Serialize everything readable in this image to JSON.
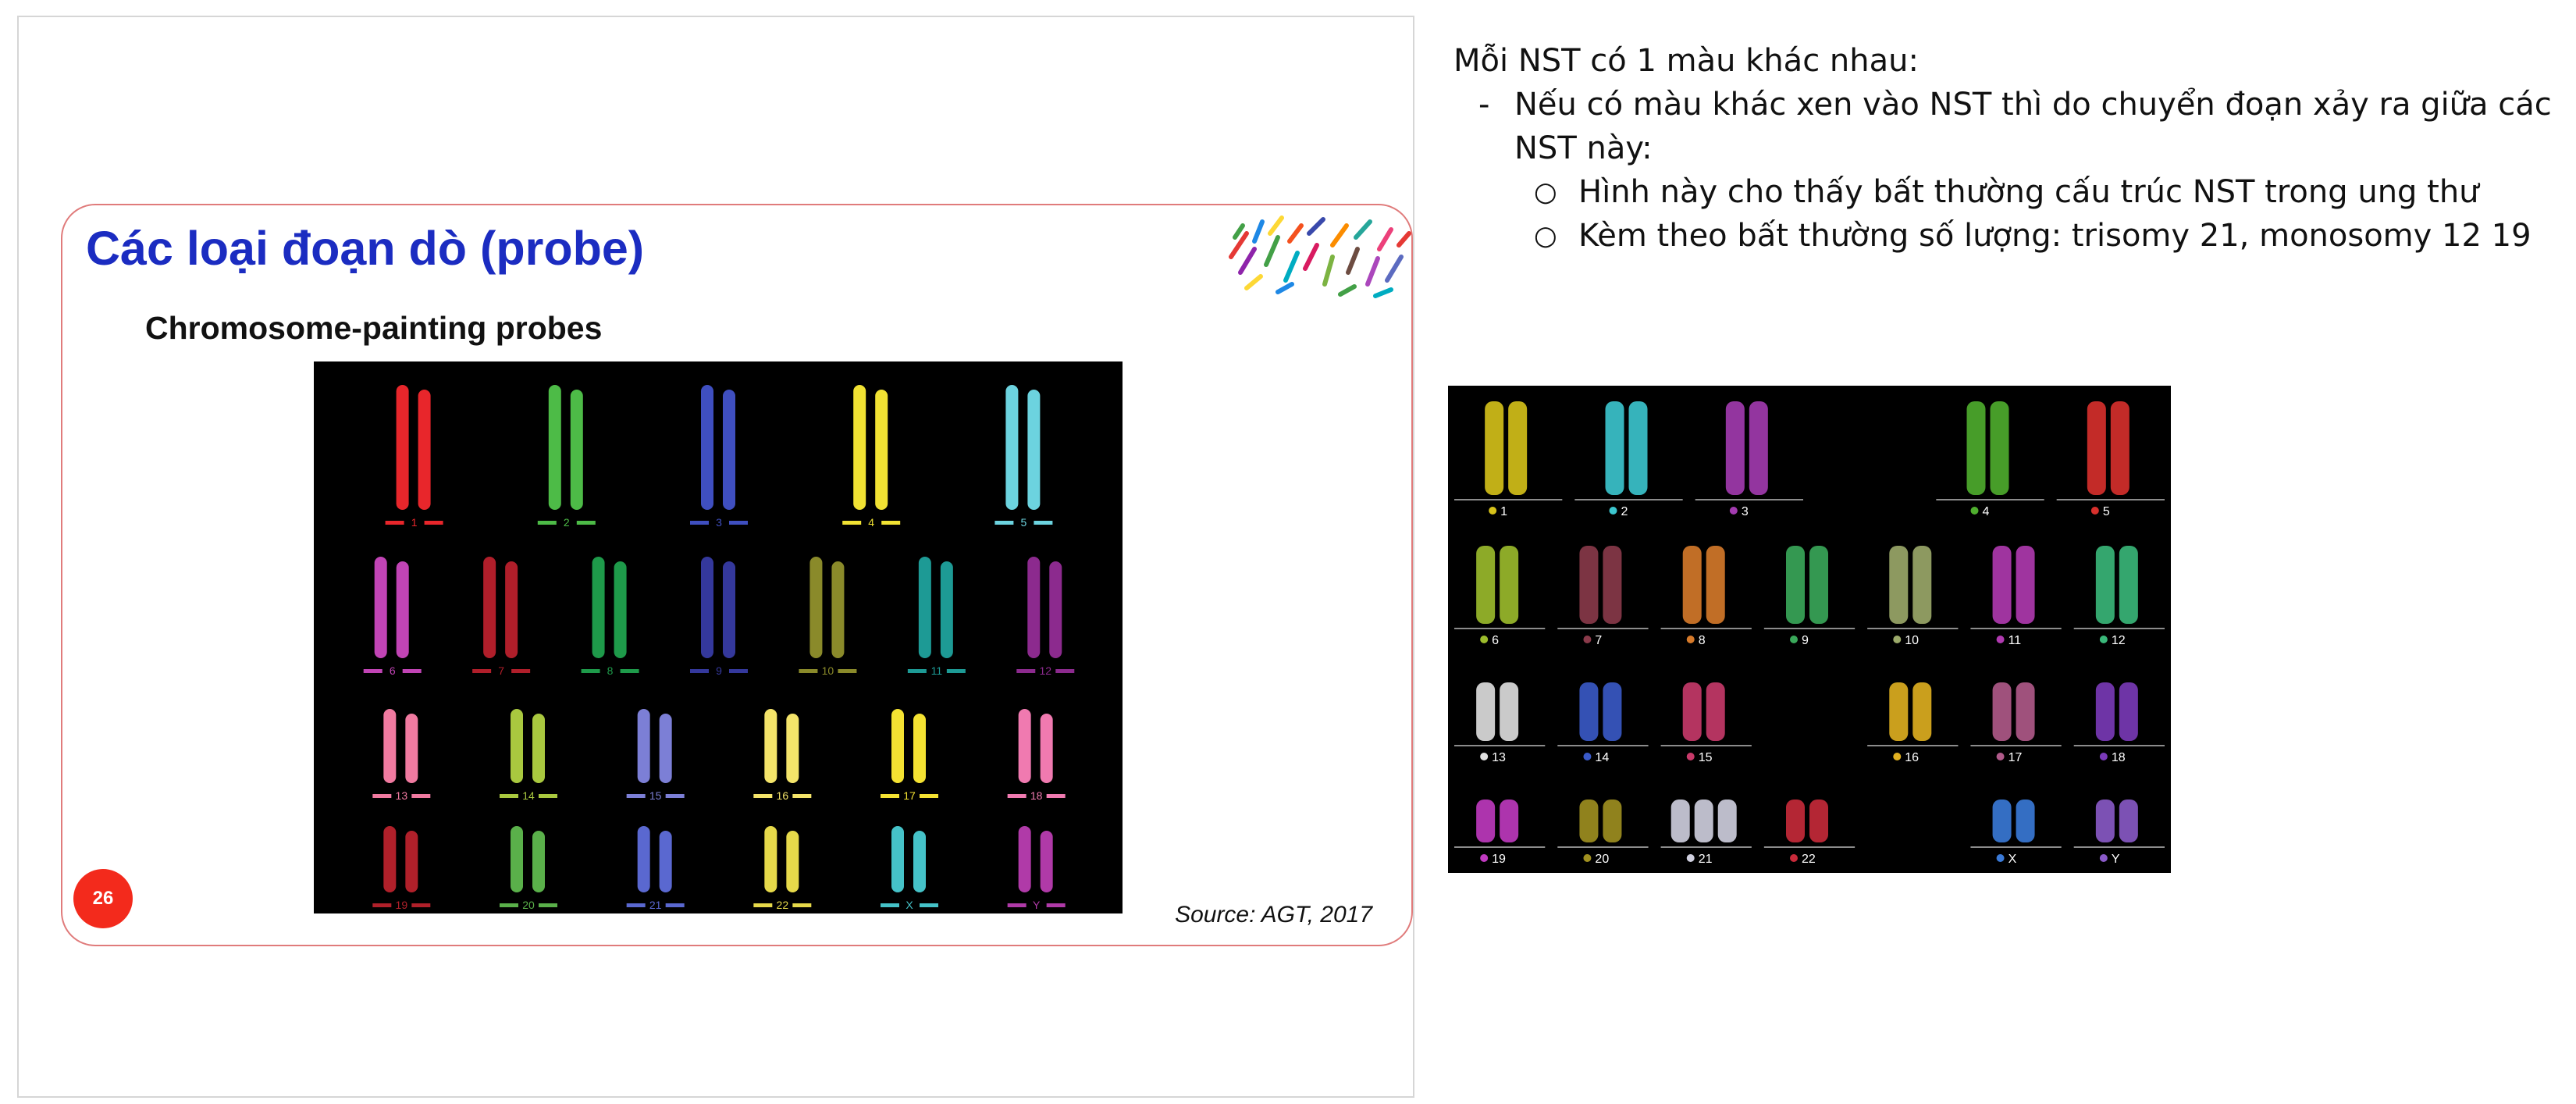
{
  "slide": {
    "title": "Các loại đoạn dò (probe)",
    "subtitle": "Chromosome-painting probes",
    "page_number": "26",
    "source": "Source: AGT, 2017",
    "karyotype_labels": [
      "1",
      "2",
      "3",
      "4",
      "5",
      "6",
      "7",
      "8",
      "9",
      "10",
      "11",
      "12",
      "13",
      "14",
      "15",
      "16",
      "17",
      "18",
      "19",
      "20",
      "21",
      "22",
      "X",
      "Y"
    ]
  },
  "notes": {
    "heading": "Mỗi NST có 1 màu khác nhau:",
    "bullet_char": "-",
    "sub_bullet_char": "○",
    "item": "Nếu có màu khác xen vào NST thì do chuyển đoạn xảy ra giữa các NST này:",
    "subitems": [
      "Hình này cho thấy bất thường cấu trúc NST trong ung thư",
      "Kèm theo bất thường số lượng: trisomy 21, monosomy 12 19"
    ]
  },
  "right_karyotype": {
    "labels": [
      "1",
      "2",
      "3",
      "4",
      "5",
      "6",
      "7",
      "8",
      "9",
      "10",
      "11",
      "12",
      "13",
      "14",
      "15",
      "16",
      "17",
      "18",
      "19",
      "20",
      "21",
      "22",
      "X",
      "Y"
    ]
  },
  "colors": {
    "title_blue": "#1b2cc1",
    "badge_red": "#f32a1c",
    "slide_border": "#e07b7b"
  }
}
